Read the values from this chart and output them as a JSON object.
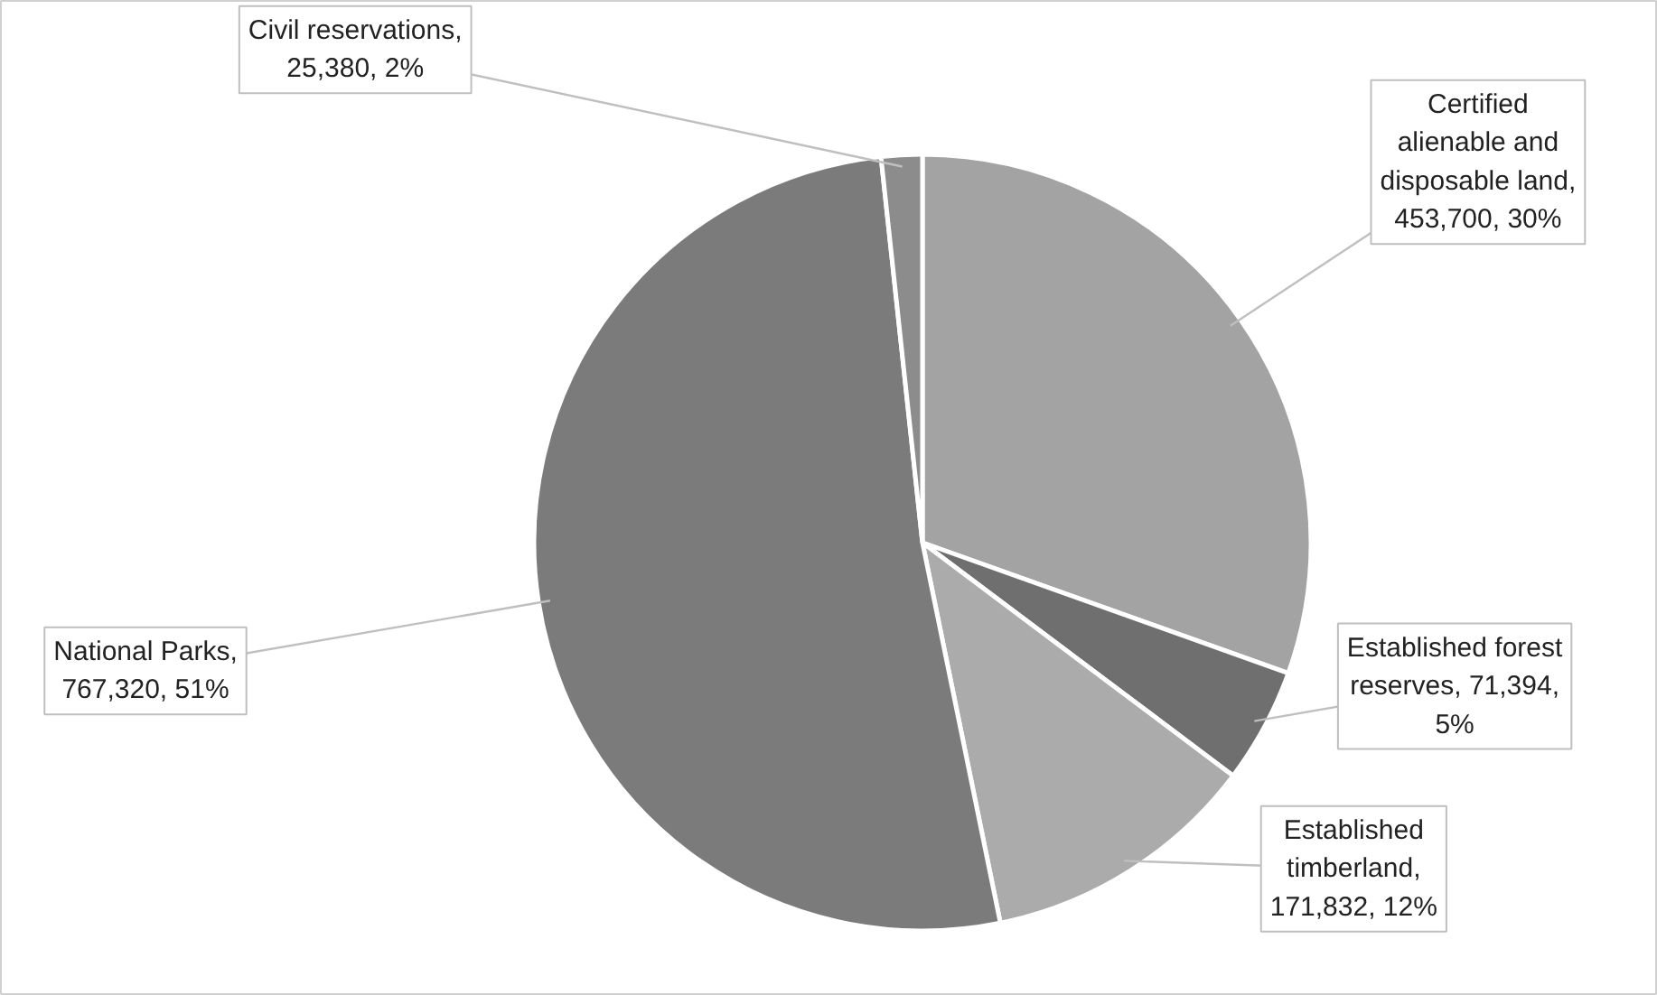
{
  "chart_data": {
    "type": "pie",
    "categories": [
      "Certified alienable and disposable land",
      "Established forest reserves",
      "Established timberland",
      "National Parks",
      "Civil reservations"
    ],
    "values": [
      453700,
      71394,
      171832,
      767320,
      25380
    ],
    "value_labels": [
      ", 453,700, 30%",
      ", 71,394, 5%",
      ", 171,832, 12%",
      ", 767,320, 51%",
      ", 25,380, 2%"
    ],
    "colors": [
      "#a3a3a3",
      "#6f6f6f",
      "#ababab",
      "#7b7b7b",
      "#8c8c8c"
    ]
  }
}
